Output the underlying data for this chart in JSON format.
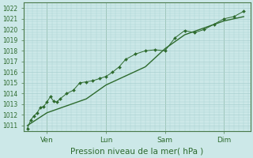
{
  "bg_color": "#cce8e8",
  "grid_color": "#aad0d0",
  "line_color": "#2d6a2d",
  "marker_color": "#2d6a2d",
  "xlabel": "Pression niveau de la mer( hPa )",
  "ylim": [
    1010.5,
    1022.5
  ],
  "yticks": [
    1011,
    1012,
    1013,
    1014,
    1015,
    1016,
    1017,
    1018,
    1019,
    1020,
    1021,
    1022
  ],
  "xtick_labels": [
    "Ven",
    "Lun",
    "Sam",
    "Dim"
  ],
  "xtick_positions": [
    12,
    48,
    84,
    120
  ],
  "vline_positions": [
    12,
    48,
    84,
    120
  ],
  "x_series1": [
    0,
    2,
    4,
    6,
    8,
    10,
    12,
    14,
    16,
    18,
    20,
    24,
    28,
    32,
    36,
    40,
    44,
    48,
    52,
    56,
    60,
    66,
    72,
    78,
    84,
    90,
    96,
    102,
    108,
    114,
    120,
    126,
    132
  ],
  "y_series1": [
    1010.7,
    1011.5,
    1011.9,
    1012.2,
    1012.7,
    1012.8,
    1013.2,
    1013.7,
    1013.3,
    1013.2,
    1013.5,
    1014.0,
    1014.3,
    1015.0,
    1015.1,
    1015.2,
    1015.4,
    1015.6,
    1016.0,
    1016.5,
    1017.2,
    1017.7,
    1018.0,
    1018.1,
    1018.0,
    1019.2,
    1019.9,
    1019.7,
    1020.0,
    1020.5,
    1021.0,
    1021.2,
    1021.7
  ],
  "x_series2": [
    0,
    12,
    36,
    48,
    72,
    84,
    96,
    120,
    132
  ],
  "y_series2": [
    1011.0,
    1012.2,
    1013.5,
    1014.8,
    1016.5,
    1018.2,
    1019.5,
    1020.8,
    1021.2
  ],
  "xlim": [
    -2,
    136
  ],
  "spine_color": "#4a7a4a",
  "tick_color": "#4a7a4a",
  "label_color": "#2d6a2d",
  "xlabel_fontsize": 7.5,
  "ytick_fontsize": 5.5,
  "xtick_fontsize": 6.5
}
